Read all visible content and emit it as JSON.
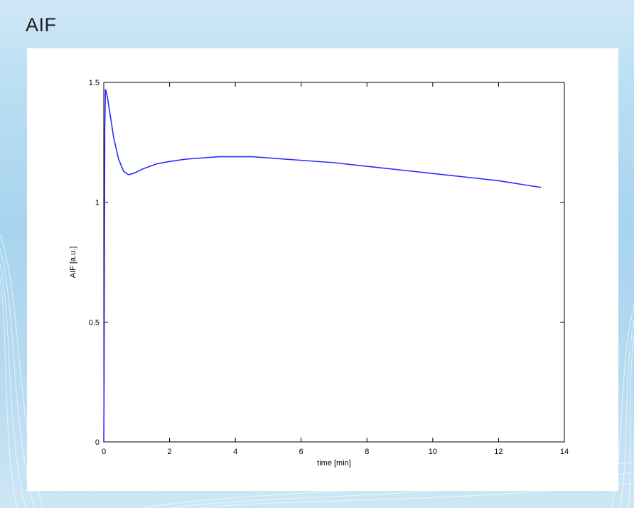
{
  "slide": {
    "title": "AIF"
  },
  "colors": {
    "line": "#2b2bff",
    "axes": "#000000",
    "panel": "#ffffff"
  },
  "chart_data": {
    "type": "line",
    "title": "",
    "xlabel": "time [min]",
    "ylabel": "AIF [a.u.]",
    "xlim": [
      0,
      14
    ],
    "ylim": [
      0,
      1.5
    ],
    "xticks": [
      0,
      2,
      4,
      6,
      8,
      10,
      12,
      14
    ],
    "yticks": [
      0,
      0.5,
      1,
      1.5
    ],
    "xtick_labels": [
      "0",
      "2",
      "4",
      "6",
      "8",
      "10",
      "12",
      "14"
    ],
    "ytick_labels": [
      "0",
      "0.5",
      "1",
      "1.5"
    ],
    "grid": false,
    "legend": "none",
    "series": [
      {
        "x": [
          0,
          0.01,
          0.03,
          0.05,
          0.08,
          0.12,
          0.2,
          0.3,
          0.45,
          0.6,
          0.75,
          0.9,
          1.2,
          1.6,
          2,
          2.5,
          3,
          3.5,
          4,
          4.5,
          5,
          6,
          7,
          8,
          9,
          10,
          11,
          12,
          13,
          13.3
        ],
        "y": [
          0,
          0.25,
          1.3,
          1.47,
          1.46,
          1.43,
          1.36,
          1.27,
          1.18,
          1.13,
          1.115,
          1.12,
          1.14,
          1.16,
          1.17,
          1.18,
          1.185,
          1.19,
          1.19,
          1.19,
          1.185,
          1.175,
          1.165,
          1.15,
          1.135,
          1.12,
          1.105,
          1.09,
          1.068,
          1.062
        ]
      }
    ]
  }
}
